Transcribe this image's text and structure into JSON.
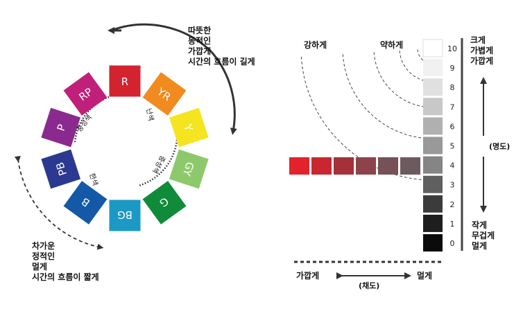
{
  "wheel": {
    "chips": [
      {
        "label": "R",
        "color": "#d2232f",
        "label_color": "#ffffff"
      },
      {
        "label": "YR",
        "color": "#f18a1f",
        "label_color": "#ffffff"
      },
      {
        "label": "Y",
        "color": "#f4e520",
        "label_color": "#ffffff"
      },
      {
        "label": "GY",
        "color": "#8dc96b",
        "label_color": "#ffffff"
      },
      {
        "label": "G",
        "color": "#0f8b3a",
        "label_color": "#ffffff"
      },
      {
        "label": "BG",
        "color": "#1c98c5",
        "label_color": "#ffffff"
      },
      {
        "label": "B",
        "color": "#1359a7",
        "label_color": "#ffffff"
      },
      {
        "label": "PB",
        "color": "#2b3990",
        "label_color": "#ffffff"
      },
      {
        "label": "P",
        "color": "#8a2a8e",
        "label_color": "#ffffff"
      },
      {
        "label": "RP",
        "color": "#c01f7a",
        "label_color": "#ffffff"
      }
    ],
    "inner_labels": {
      "warm": "난색",
      "neutral_top": "중성색",
      "neutral_bottom": "중성색",
      "cool": "한색"
    },
    "warm_caption": "따뜻한\n동적인\n가깝게\n시간의 흐름이 길게",
    "cool_caption": "차가운\n정적인\n멀게\n시간의 흐름이 짧게"
  },
  "chart": {
    "strong_label": "강하게",
    "weak_label": "약하게",
    "value_steps": [
      "10",
      "9",
      "8",
      "7",
      "6",
      "5",
      "4",
      "3",
      "2",
      "1",
      "0"
    ],
    "gray_colors": [
      "#ffffff",
      "#f1f1f1",
      "#e0e0e0",
      "#c8c8c8",
      "#b0b0b0",
      "#999999",
      "#858585",
      "#5f5f5f",
      "#3b3b3b",
      "#1e1e1e",
      "#0b0b0b"
    ],
    "chroma_colors": [
      "#e3222c",
      "#c9272f",
      "#a53039",
      "#8e424b",
      "#765157",
      "#6d5a5e"
    ],
    "top_caption": "크게\n가볍게\n가깝게",
    "bottom_caption": "작게\n무겁게\n멀게",
    "value_axis_label": "(명도)",
    "chroma_axis_label": "(채도)",
    "near_label": "가깝게",
    "far_label": "멀게"
  }
}
